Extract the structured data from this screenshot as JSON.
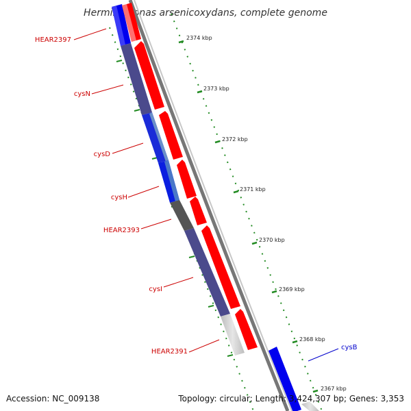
{
  "title": "Herminiimonas arsenicoxydans, complete genome",
  "footer": {
    "accession": "Accession: NC_009138",
    "topology": "Topology: circular; Length: 3,424,307 bp; Genes: 3,353"
  },
  "ticks": [
    "2374 kbp",
    "2373 kbp",
    "2372 kbp",
    "2371 kbp",
    "2370 kbp",
    "2369 kbp",
    "2368 kbp",
    "2367 kbp"
  ],
  "genes": [
    {
      "label": "HEAR2397",
      "strand": "reverse"
    },
    {
      "label": "cysN",
      "strand": "reverse"
    },
    {
      "label": "cysD",
      "strand": "reverse"
    },
    {
      "label": "cysH",
      "strand": "reverse"
    },
    {
      "label": "HEAR2393",
      "strand": "reverse"
    },
    {
      "label": "cysI",
      "strand": "reverse"
    },
    {
      "label": "HEAR2391",
      "strand": "reverse"
    },
    {
      "label": "cysB",
      "strand": "forward"
    }
  ],
  "colors": {
    "reverse_label": "#cc0000",
    "forward_label": "#0000cc",
    "cds_reverse": "#ff0000",
    "tick": "#228b22",
    "backbone": "#888888"
  }
}
